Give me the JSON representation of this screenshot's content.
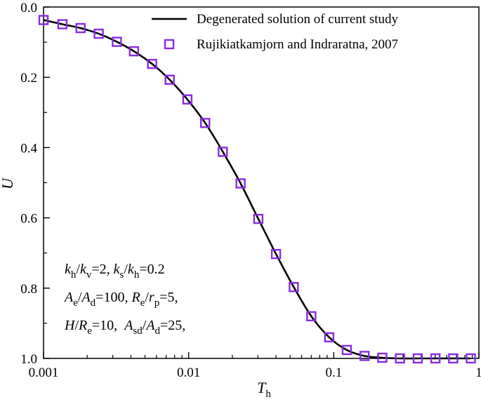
{
  "chart_data": {
    "type": "line",
    "xscale": "log",
    "xlim": [
      0.001,
      1
    ],
    "ylim": [
      0.0,
      1.0
    ],
    "y_inverted": true,
    "grid": false,
    "legend_position": "top-right",
    "xlabel": {
      "main": "T",
      "sub": "h"
    },
    "ylabel": "U",
    "x_ticks": [
      {
        "value": 0.001,
        "label": "0.001"
      },
      {
        "value": 0.01,
        "label": "0.01"
      },
      {
        "value": 0.1,
        "label": "0.1"
      },
      {
        "value": 1,
        "label": "1"
      }
    ],
    "y_ticks": [
      {
        "value": 0.0,
        "label": "0.0"
      },
      {
        "value": 0.2,
        "label": "0.2"
      },
      {
        "value": 0.4,
        "label": "0.4"
      },
      {
        "value": 0.6,
        "label": "0.6"
      },
      {
        "value": 0.8,
        "label": "0.8"
      },
      {
        "value": 1.0,
        "label": "1.0"
      }
    ],
    "series": [
      {
        "name": "Degenerated solution of current study",
        "kind": "line",
        "color": "#000000",
        "x": [
          0.001,
          0.00135,
          0.0018,
          0.0024,
          0.0032,
          0.0042,
          0.0056,
          0.0074,
          0.0098,
          0.013,
          0.0172,
          0.0228,
          0.0302,
          0.04,
          0.053,
          0.07,
          0.093,
          0.123,
          0.163,
          0.216,
          0.286,
          0.379,
          0.502,
          0.665,
          0.88
        ],
        "y": [
          0.037,
          0.049,
          0.06,
          0.076,
          0.099,
          0.126,
          0.162,
          0.207,
          0.263,
          0.33,
          0.412,
          0.502,
          0.603,
          0.703,
          0.797,
          0.88,
          0.94,
          0.976,
          0.993,
          0.998,
          1.0,
          1.0,
          1.0,
          1.0,
          1.0
        ]
      },
      {
        "name": "Rujikiatkamjorn and Indraratna, 2007",
        "kind": "scatter",
        "marker": "open-square",
        "color": "#8a2be2",
        "x": [
          0.001,
          0.00135,
          0.0018,
          0.0024,
          0.0032,
          0.0042,
          0.0056,
          0.0074,
          0.0098,
          0.013,
          0.0172,
          0.0228,
          0.0302,
          0.04,
          0.053,
          0.07,
          0.093,
          0.123,
          0.163,
          0.216,
          0.286,
          0.379,
          0.502,
          0.665,
          0.88
        ],
        "y": [
          0.037,
          0.049,
          0.06,
          0.076,
          0.099,
          0.126,
          0.162,
          0.207,
          0.263,
          0.33,
          0.412,
          0.502,
          0.603,
          0.703,
          0.797,
          0.88,
          0.94,
          0.976,
          0.993,
          0.998,
          1.0,
          1.0,
          1.0,
          1.0,
          1.0
        ]
      }
    ],
    "annotation": {
      "lines": [
        [
          {
            "t": "k",
            "style": "i"
          },
          {
            "t": "h",
            "style": "sub"
          },
          {
            "t": "/"
          },
          {
            "t": "k",
            "style": "i"
          },
          {
            "t": "v",
            "style": "sub"
          },
          {
            "t": "=2, "
          },
          {
            "t": "k",
            "style": "i"
          },
          {
            "t": "s",
            "style": "sub"
          },
          {
            "t": "/"
          },
          {
            "t": "k",
            "style": "i"
          },
          {
            "t": "h",
            "style": "sub"
          },
          {
            "t": "=0.2"
          }
        ],
        [
          {
            "t": "A",
            "style": "i"
          },
          {
            "t": "e",
            "style": "sub"
          },
          {
            "t": "/"
          },
          {
            "t": "A",
            "style": "i"
          },
          {
            "t": "d",
            "style": "sub"
          },
          {
            "t": "=100, "
          },
          {
            "t": "R",
            "style": "i"
          },
          {
            "t": "e",
            "style": "sub"
          },
          {
            "t": "/"
          },
          {
            "t": "r",
            "style": "i"
          },
          {
            "t": "p",
            "style": "sub"
          },
          {
            "t": "=5,"
          }
        ],
        [
          {
            "t": "H",
            "style": "i"
          },
          {
            "t": "/"
          },
          {
            "t": "R",
            "style": "i"
          },
          {
            "t": "e",
            "style": "sub"
          },
          {
            "t": "=10,  "
          },
          {
            "t": "A",
            "style": "i"
          },
          {
            "t": "sd",
            "style": "sub"
          },
          {
            "t": "/"
          },
          {
            "t": "A",
            "style": "i"
          },
          {
            "t": "d",
            "style": "sub"
          },
          {
            "t": "=25,"
          }
        ]
      ]
    }
  }
}
